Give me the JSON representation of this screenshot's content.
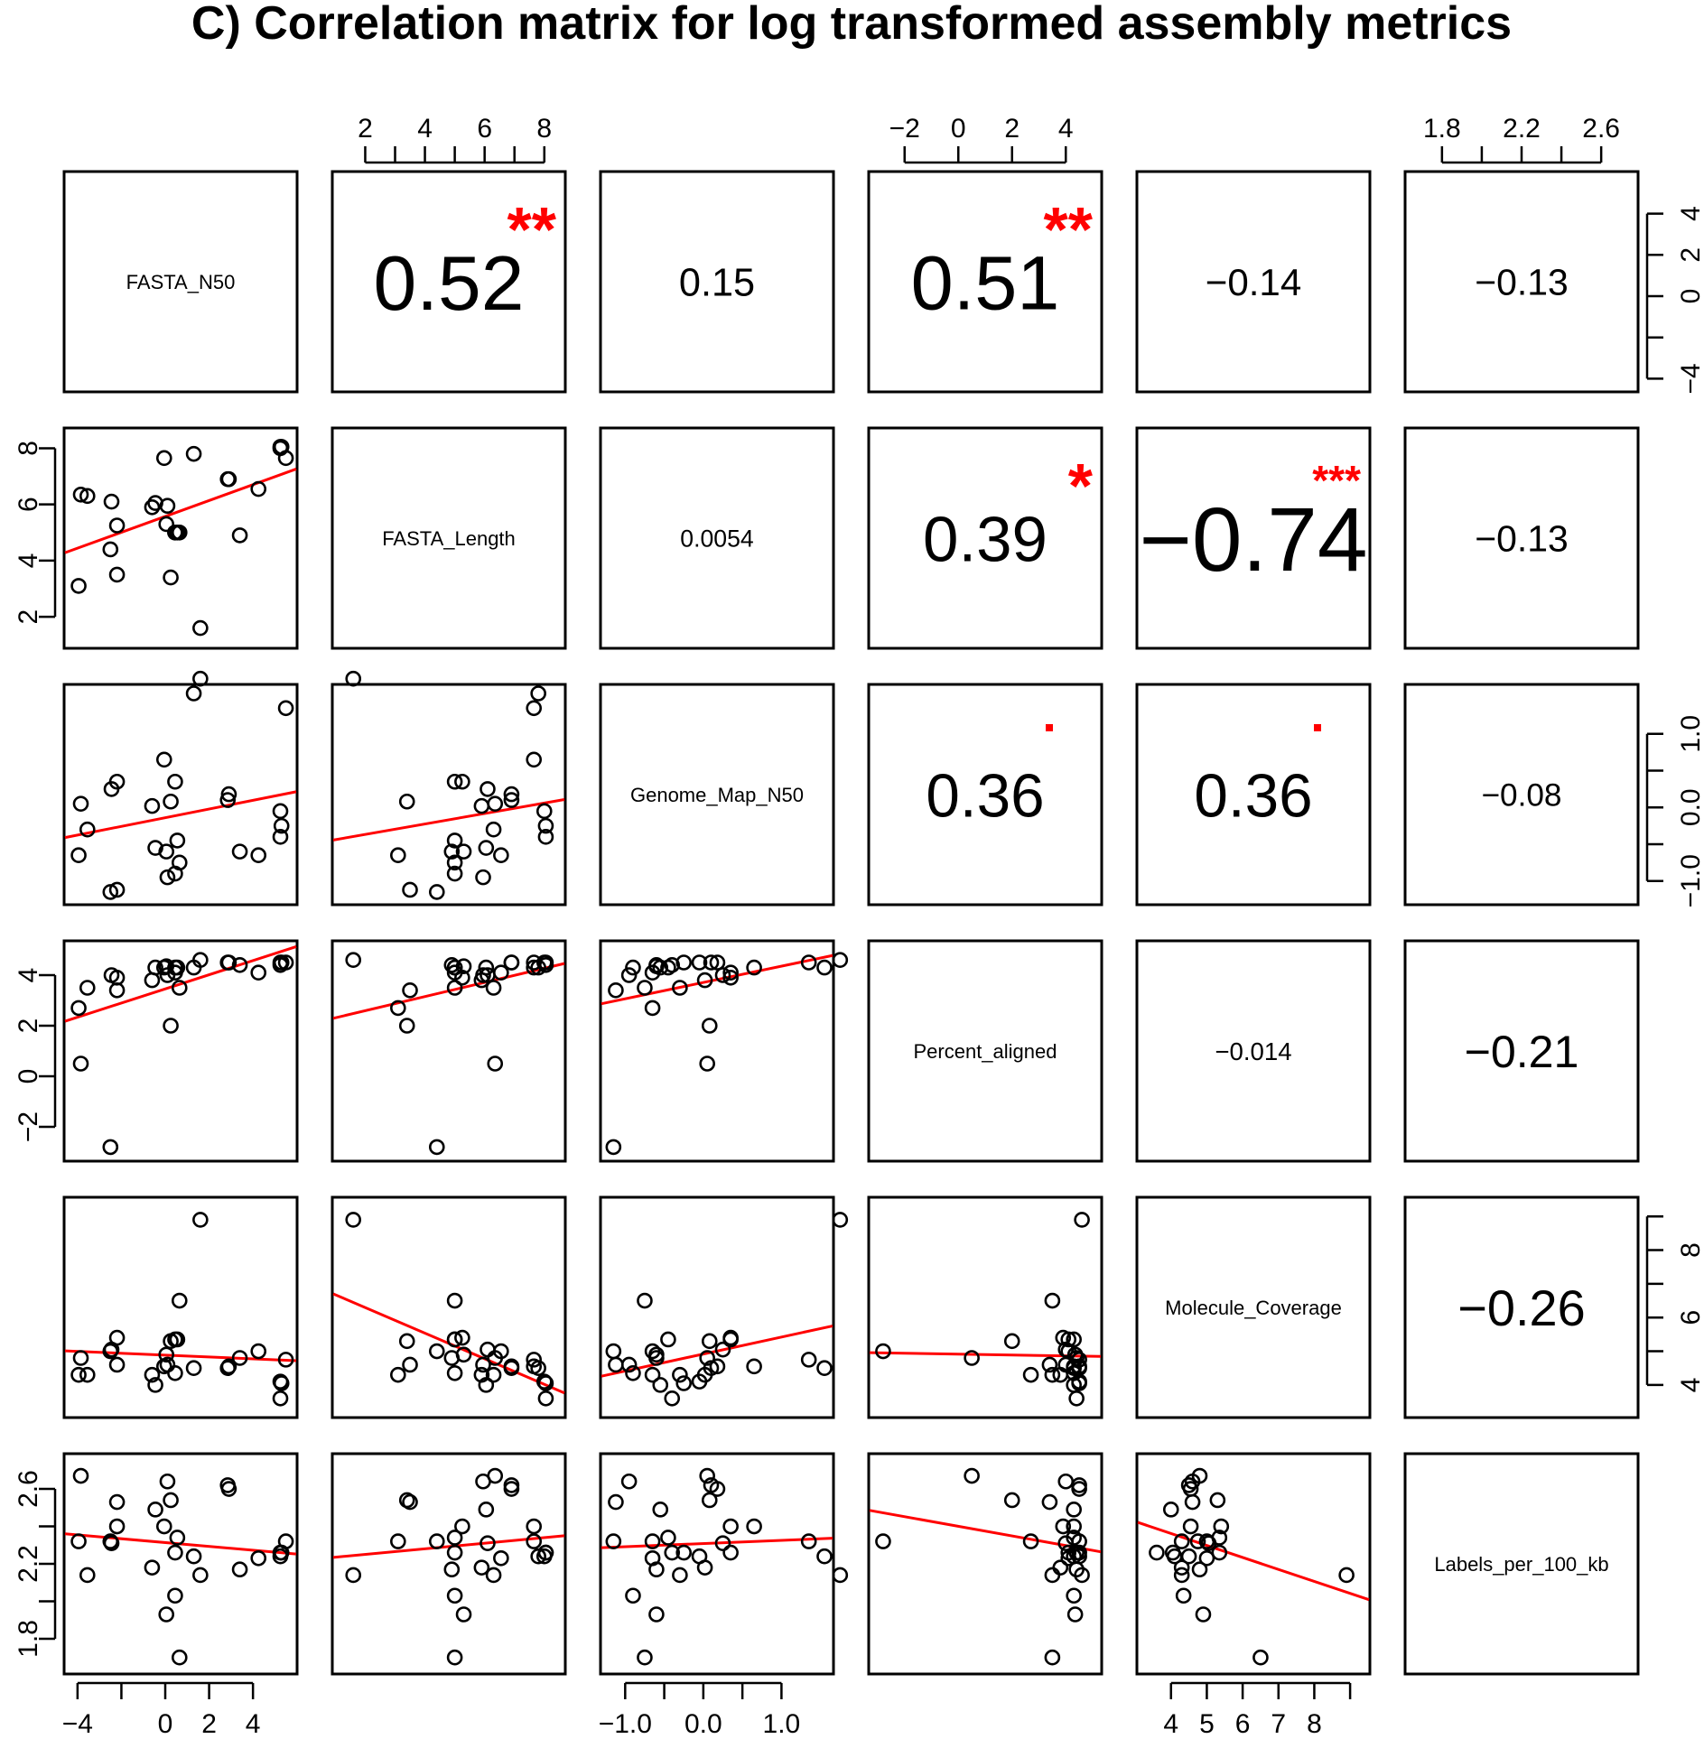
{
  "title": "C) Correlation matrix for log transformed assembly metrics",
  "chart_data": {
    "type": "scatter",
    "variables": [
      "FASTA_N50",
      "FASTA_Length",
      "Genome_Map_N50",
      "Percent_aligned",
      "Molecule_Coverage",
      "Labels_per_100_kb"
    ],
    "ranges": [
      [
        -4.2,
        5.6
      ],
      [
        1.2,
        8.4
      ],
      [
        -1.2,
        1.55
      ],
      [
        -3.0,
        5.0
      ],
      [
        3.3,
        9.3
      ],
      [
        1.66,
        2.74
      ]
    ],
    "axis_ticks": [
      {
        "values": [
          -4,
          0,
          2,
          4
        ],
        "labels": [
          "−4",
          "0",
          "2",
          "4"
        ],
        "minor": [
          -2
        ]
      },
      {
        "values": [
          2,
          4,
          6,
          8
        ],
        "labels": [
          "2",
          "4",
          "6",
          "8"
        ],
        "minor": [
          3,
          5,
          7
        ]
      },
      {
        "values": [
          -1.0,
          0.0,
          1.0
        ],
        "labels": [
          "−1.0",
          "0.0",
          "1.0"
        ],
        "minor": [
          -0.5,
          0.5
        ]
      },
      {
        "values": [
          -2,
          0,
          2,
          4
        ],
        "labels": [
          "−2",
          "0",
          "2",
          "4"
        ],
        "minor": []
      },
      {
        "values": [
          4,
          5,
          6,
          7,
          8
        ],
        "labels": [
          "4",
          "5",
          "6",
          "7",
          "8"
        ],
        "minor": [
          9
        ]
      },
      {
        "values": [
          1.8,
          2.2,
          2.6
        ],
        "labels": [
          "1.8",
          "2.2",
          "2.6"
        ],
        "minor": [
          2.0,
          2.4
        ]
      }
    ],
    "right_axis_ticks": {
      "0": {
        "values": [
          -4,
          0,
          2,
          4
        ],
        "labels": [
          "−4",
          "0",
          "2",
          "4"
        ],
        "minor": [
          -2
        ]
      },
      "2": {
        "values": [
          -1.0,
          0.0,
          1.0
        ],
        "labels": [
          "−1.0",
          "0.0",
          "1.0"
        ],
        "minor": [
          -0.5,
          0.5
        ]
      },
      "4": {
        "values": [
          4,
          6,
          8
        ],
        "labels": [
          "4",
          "6",
          "8"
        ],
        "minor": [
          5,
          7,
          9
        ]
      }
    },
    "left_axis_ticks": {
      "1": {
        "values": [
          2,
          4,
          6,
          8
        ],
        "labels": [
          "2",
          "4",
          "6",
          "8"
        ],
        "minor": []
      },
      "3": {
        "values": [
          -2,
          0,
          2,
          4
        ],
        "labels": [
          "−2",
          "0",
          "2",
          "4"
        ],
        "minor": []
      },
      "5": {
        "values": [
          1.8,
          2.2,
          2.6
        ],
        "labels": [
          "1.8",
          "2.2",
          "2.6"
        ],
        "minor": [
          2.0,
          2.4
        ]
      }
    },
    "correlations": [
      {
        "row": 0,
        "col": 1,
        "value": "0.52",
        "stars": "**"
      },
      {
        "row": 0,
        "col": 2,
        "value": "0.15",
        "stars": ""
      },
      {
        "row": 0,
        "col": 3,
        "value": "0.51",
        "stars": "**"
      },
      {
        "row": 0,
        "col": 4,
        "value": "−0.14",
        "stars": ""
      },
      {
        "row": 0,
        "col": 5,
        "value": "−0.13",
        "stars": ""
      },
      {
        "row": 1,
        "col": 2,
        "value": "0.0054",
        "stars": ""
      },
      {
        "row": 1,
        "col": 3,
        "value": "0.39",
        "stars": "*"
      },
      {
        "row": 1,
        "col": 4,
        "value": "−0.74",
        "stars": "***"
      },
      {
        "row": 1,
        "col": 5,
        "value": "−0.13",
        "stars": ""
      },
      {
        "row": 2,
        "col": 3,
        "value": "0.36",
        "stars": "."
      },
      {
        "row": 2,
        "col": 4,
        "value": "0.36",
        "stars": "."
      },
      {
        "row": 2,
        "col": 5,
        "value": "−0.08",
        "stars": ""
      },
      {
        "row": 3,
        "col": 4,
        "value": "−0.014",
        "stars": ""
      },
      {
        "row": 3,
        "col": 5,
        "value": "−0.21",
        "stars": ""
      },
      {
        "row": 4,
        "col": 5,
        "value": "−0.26",
        "stars": ""
      }
    ],
    "observations": [
      [
        -3.95,
        3.1,
        -0.65,
        2.7,
        4.3,
        2.32
      ],
      [
        -3.85,
        6.35,
        0.05,
        0.5,
        4.8,
        2.67
      ],
      [
        -3.55,
        6.3,
        -0.3,
        3.5,
        4.3,
        2.14
      ],
      [
        -2.5,
        4.4,
        -1.15,
        -2.8,
        5.0,
        2.32
      ],
      [
        -2.45,
        6.1,
        0.25,
        4.0,
        5.05,
        2.31
      ],
      [
        -2.2,
        3.5,
        -1.12,
        3.4,
        4.6,
        2.53
      ],
      [
        -2.2,
        5.25,
        0.35,
        3.9,
        5.4,
        2.4
      ],
      [
        -0.6,
        5.9,
        0.02,
        3.8,
        4.3,
        2.18
      ],
      [
        -0.45,
        6.05,
        -0.55,
        4.3,
        4.0,
        2.49
      ],
      [
        -0.05,
        7.65,
        0.65,
        4.3,
        4.55,
        2.4
      ],
      [
        0.05,
        5.3,
        -0.6,
        4.35,
        4.9,
        1.93
      ],
      [
        0.1,
        5.95,
        -0.95,
        4.0,
        4.6,
        2.64
      ],
      [
        0.25,
        3.4,
        0.08,
        2.0,
        5.3,
        2.54
      ],
      [
        0.45,
        5.0,
        0.35,
        4.1,
        5.35,
        2.26
      ],
      [
        0.45,
        5.0,
        -0.9,
        4.3,
        4.35,
        2.03
      ],
      [
        0.55,
        5.0,
        -0.45,
        4.3,
        5.35,
        2.34
      ],
      [
        0.65,
        5.0,
        -0.75,
        3.5,
        6.5,
        1.7
      ],
      [
        1.3,
        7.8,
        1.55,
        4.3,
        4.5,
        2.24
      ],
      [
        1.6,
        1.6,
        1.75,
        4.6,
        8.9,
        2.14
      ],
      [
        2.85,
        6.9,
        0.1,
        4.5,
        4.5,
        2.62
      ],
      [
        2.9,
        6.9,
        0.18,
        4.5,
        4.55,
        2.6
      ],
      [
        3.4,
        4.9,
        -0.6,
        4.4,
        4.8,
        2.17
      ],
      [
        4.25,
        6.55,
        -0.65,
        4.1,
        5.0,
        2.23
      ],
      [
        5.25,
        8.05,
        -0.4,
        4.4,
        3.6,
        2.26
      ],
      [
        5.25,
        8.0,
        -0.05,
        4.5,
        4.1,
        2.24
      ],
      [
        5.3,
        8.05,
        -0.25,
        4.5,
        4.05,
        2.26
      ],
      [
        5.5,
        7.65,
        1.35,
        4.5,
        4.75,
        2.32
      ]
    ]
  }
}
